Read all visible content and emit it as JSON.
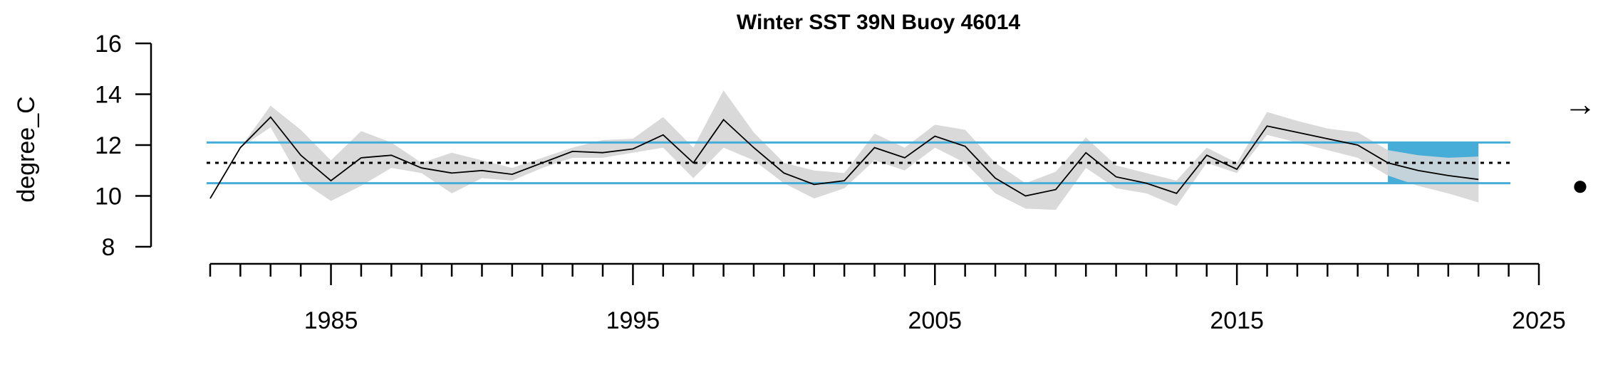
{
  "chart_data": {
    "type": "line",
    "title": "Winter SST 39N Buoy 46014",
    "xlabel": "",
    "ylabel": "degree_C",
    "xlim": [
      1981,
      2025
    ],
    "ylim": [
      8,
      16
    ],
    "y_ticks": [
      8,
      10,
      12,
      14,
      16
    ],
    "x_ticks": [
      1985,
      1995,
      2005,
      2015,
      2025
    ],
    "grid": false,
    "mean": 11.3,
    "upper_sd": 12.1,
    "lower_sd": 10.5,
    "recent_window": [
      2020,
      2023
    ],
    "trend_symbol": "→",
    "mean_symbol": "●",
    "colors": {
      "line": "#000000",
      "band": "#d9d9d9",
      "sd_line": "#46add8",
      "highlight": "#46add8",
      "mean_line": "#000000"
    },
    "series": [
      {
        "x": [
          1981,
          1982,
          1983,
          1984,
          1985,
          1986,
          1987,
          1988,
          1989,
          1990,
          1991,
          1992,
          1993,
          1994,
          1995,
          1996,
          1997,
          1998,
          1999,
          2000,
          2001,
          2002,
          2003,
          2004,
          2005,
          2006,
          2007,
          2008,
          2009,
          2010,
          2011,
          2012,
          2013,
          2014,
          2015,
          2016,
          2017,
          2018,
          2019,
          2020,
          2021,
          2022,
          2023
        ],
        "values": [
          9.9,
          11.9,
          13.1,
          11.6,
          10.6,
          11.5,
          11.6,
          11.1,
          10.9,
          11.0,
          10.85,
          11.3,
          11.75,
          11.7,
          11.85,
          12.4,
          11.3,
          13.0,
          11.9,
          10.9,
          10.45,
          10.6,
          11.9,
          11.5,
          12.35,
          11.95,
          10.7,
          10.0,
          10.25,
          11.7,
          10.75,
          10.5,
          10.1,
          11.6,
          11.05,
          12.75,
          12.5,
          12.25,
          12.0,
          11.3,
          11.0,
          10.8,
          10.65
        ],
        "lower": [
          9.9,
          11.9,
          12.7,
          10.6,
          9.8,
          10.4,
          11.1,
          10.9,
          10.1,
          10.7,
          10.6,
          11.1,
          11.5,
          11.5,
          11.7,
          11.9,
          10.7,
          11.9,
          11.4,
          10.5,
          9.9,
          10.3,
          11.4,
          11.0,
          11.9,
          11.3,
          10.1,
          9.5,
          9.45,
          11.1,
          10.3,
          10.1,
          9.6,
          11.3,
          10.9,
          12.4,
          12.1,
          11.8,
          11.5,
          10.8,
          10.4,
          10.1,
          9.75
        ],
        "upper": [
          9.9,
          11.9,
          13.55,
          12.6,
          11.4,
          12.55,
          12.1,
          11.3,
          11.7,
          11.4,
          11.1,
          11.5,
          11.9,
          12.2,
          12.25,
          13.1,
          11.9,
          14.15,
          12.5,
          11.3,
          11.0,
          10.9,
          12.45,
          11.9,
          12.8,
          12.6,
          11.3,
          10.5,
          10.95,
          12.3,
          11.2,
          10.9,
          10.6,
          11.9,
          11.3,
          13.3,
          12.95,
          12.65,
          12.5,
          11.8,
          11.6,
          11.5,
          11.55
        ]
      }
    ]
  }
}
